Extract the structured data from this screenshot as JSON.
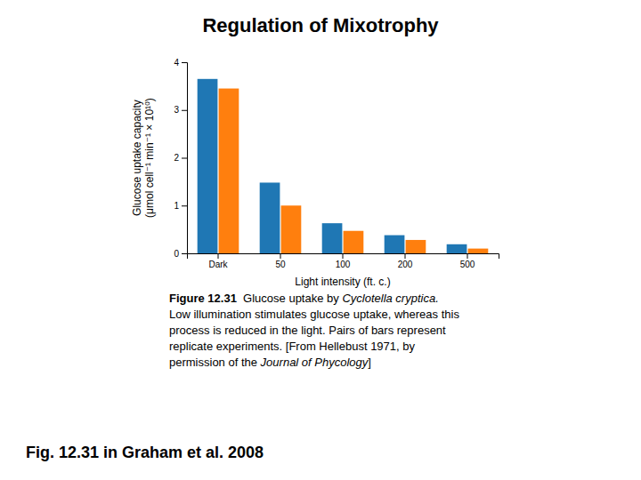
{
  "chart_data": {
    "type": "bar",
    "title": "Regulation of Mixotrophy",
    "categories": [
      "Dark",
      "50",
      "100",
      "200",
      "500"
    ],
    "series": [
      {
        "values": [
          3.65,
          1.48,
          0.63,
          0.38,
          0.19
        ]
      },
      {
        "values": [
          3.45,
          1.0,
          0.47,
          0.28,
          0.1
        ]
      }
    ],
    "xlabel": "Light intensity (ft. c.)",
    "ylabel": "Glucose uptake capacity\n(μmol cell⁻¹ min⁻¹ × 10¹⁰)",
    "ylim": [
      0,
      4
    ],
    "yticks": [
      0,
      1,
      2,
      3,
      4
    ],
    "grid": false,
    "caption": [
      [
        "Figure 12.31",
        "  Glucose uptake by ",
        "Cyclotella cryptica."
      ],
      [
        "Low illumination stimulates glucose uptake, whereas this"
      ],
      [
        "process is reduced in the light. Pairs of bars represent"
      ],
      [
        "replicate experiments. [From Hellebust 1971, by"
      ],
      [
        "permission of the ",
        "Journal of Phycology",
        "]"
      ]
    ],
    "footer": "Fig. 12.31 in Graham et al. 2008"
  }
}
